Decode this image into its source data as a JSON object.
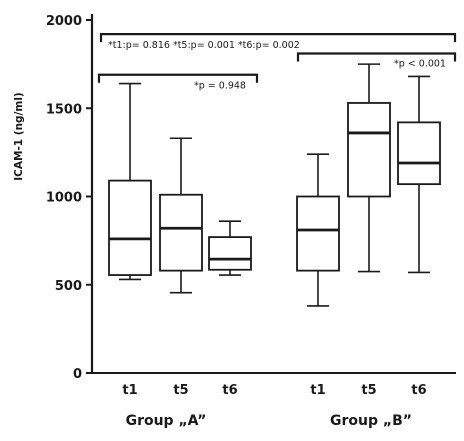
{
  "chart_data": {
    "type": "box",
    "ylabel": "ICAM-1 (ng/ml)",
    "ylim": [
      0,
      2000
    ],
    "y_ticks": [
      0,
      500,
      1000,
      1500,
      2000
    ],
    "y_tick_labels": [
      "0",
      "500",
      "1000",
      "1500",
      "2000"
    ],
    "grid": false,
    "groups": [
      {
        "label": "Group „A”",
        "boxes": [
          {
            "category": "t1",
            "min": 530,
            "q1": 555,
            "median": 760,
            "q3": 1090,
            "max": 1640
          },
          {
            "category": "t5",
            "min": 455,
            "q1": 580,
            "median": 820,
            "q3": 1010,
            "max": 1330
          },
          {
            "category": "t6",
            "min": 555,
            "q1": 585,
            "median": 645,
            "q3": 770,
            "max": 860
          }
        ]
      },
      {
        "label": "Group „B”",
        "boxes": [
          {
            "category": "t1",
            "min": 380,
            "q1": 580,
            "median": 810,
            "q3": 1000,
            "max": 1240
          },
          {
            "category": "t5",
            "min": 575,
            "q1": 1000,
            "median": 1360,
            "q3": 1530,
            "max": 1750
          },
          {
            "category": "t6",
            "min": 570,
            "q1": 1070,
            "median": 1190,
            "q3": 1420,
            "max": 1680
          }
        ]
      }
    ],
    "annotations": [
      {
        "id": "top",
        "text": "*t1:p= 0.816  *t5:p= 0.001  *t6:p= 0.002",
        "y": 1920
      },
      {
        "id": "groupA",
        "text": "*p = 0.948",
        "y": 1690
      },
      {
        "id": "groupB",
        "text": "*p < 0.001",
        "y": 1810
      }
    ]
  }
}
